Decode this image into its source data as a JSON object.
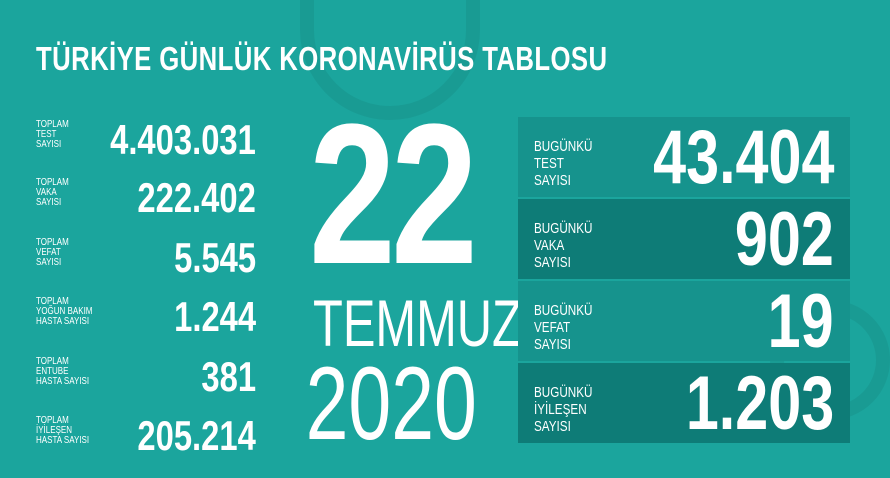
{
  "title": "TÜRKİYE GÜNLÜK KORONAVİRÜS TABLOSU",
  "totals": [
    {
      "label": "TOPLAM\nTEST\nSAYISI",
      "value": "4.403.031"
    },
    {
      "label": "TOPLAM\nVAKA\nSAYISI",
      "value": "222.402"
    },
    {
      "label": "TOPLAM\nVEFAT\nSAYISI",
      "value": "5.545"
    },
    {
      "label": "TOPLAM\nYOĞUN BAKIM\nHASTA SAYISI",
      "value": "1.244"
    },
    {
      "label": "TOPLAM\nENTUBE\nHASTA SAYISI",
      "value": "381"
    },
    {
      "label": "TOPLAM\nİYİLEŞEN\nHASTA SAYISI",
      "value": "205.214"
    }
  ],
  "date": {
    "day": "22",
    "month": "TEMMUZ",
    "year": "2020"
  },
  "today": [
    {
      "label": "BUGÜNKÜ\nTEST\nSAYISI",
      "value": "43.404"
    },
    {
      "label": "BUGÜNKÜ\nVAKA\nSAYISI",
      "value": "902"
    },
    {
      "label": "BUGÜNKÜ\nVEFAT\nSAYISI",
      "value": "19"
    },
    {
      "label": "BUGÜNKÜ\nİYİLEŞEN\nSAYISI",
      "value": "1.203"
    }
  ],
  "colors": {
    "background": "#1ba59d",
    "box_light": "#16938d",
    "box_dark": "#0e7c77"
  }
}
